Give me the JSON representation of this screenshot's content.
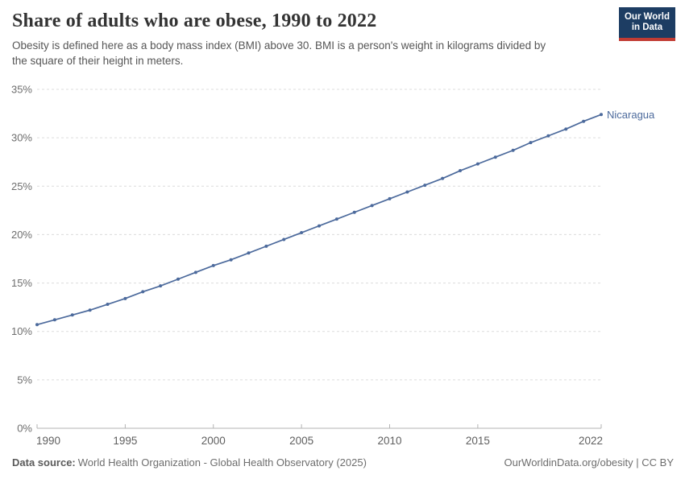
{
  "header": {
    "title": "Share of adults who are obese, 1990 to 2022",
    "subtitle": "Obesity is defined here as a body mass index (BMI) above 30. BMI is a person's weight in kilograms divided by\nthe square of their height in meters.",
    "logo": {
      "line1": "Our World",
      "line2": "in Data",
      "bg_color": "#1d3d63",
      "bar_color": "#c23c34"
    }
  },
  "chart_data": {
    "type": "line",
    "title": "Share of adults who are obese, 1990 to 2022",
    "xlabel": "",
    "ylabel": "",
    "ylim": [
      0,
      35
    ],
    "yticks": [
      0,
      5,
      10,
      15,
      20,
      25,
      30,
      35
    ],
    "ytick_format": "{v}%",
    "xticks": [
      1990,
      1995,
      2000,
      2005,
      2010,
      2015,
      2022
    ],
    "grid": "horizontal-dashed",
    "legend_position": "end-of-line-label",
    "colors": {
      "line": "#4c6a9c",
      "gridline": "#dcdcdc",
      "axis": "#b3b3b3",
      "tick_text": "#6e6e6e"
    },
    "series": [
      {
        "name": "Nicaragua",
        "color": "#4c6a9c",
        "x": [
          1990,
          1991,
          1992,
          1993,
          1994,
          1995,
          1996,
          1997,
          1998,
          1999,
          2000,
          2001,
          2002,
          2003,
          2004,
          2005,
          2006,
          2007,
          2008,
          2009,
          2010,
          2011,
          2012,
          2013,
          2014,
          2015,
          2016,
          2017,
          2018,
          2019,
          2020,
          2021,
          2022
        ],
        "values": [
          10.7,
          11.2,
          11.7,
          12.2,
          12.8,
          13.4,
          14.1,
          14.7,
          15.4,
          16.1,
          16.8,
          17.4,
          18.1,
          18.8,
          19.5,
          20.2,
          20.9,
          21.6,
          22.3,
          23.0,
          23.7,
          24.4,
          25.1,
          25.8,
          26.6,
          27.3,
          28.0,
          28.7,
          29.5,
          30.2,
          30.9,
          31.7,
          32.4
        ]
      }
    ]
  },
  "footer": {
    "datasource_label": "Data source:",
    "datasource_value": "World Health Organization - Global Health Observatory (2025)",
    "rights": "OurWorldinData.org/obesity | CC BY"
  }
}
